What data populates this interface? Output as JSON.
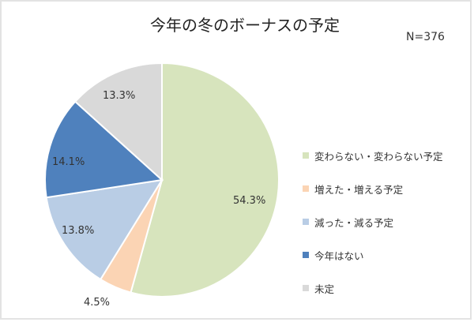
{
  "chart_data": {
    "type": "pie",
    "title": "今年の冬のボーナスの予定",
    "annotation": "N=376",
    "categories": [
      "変わらない・変わらない予定",
      "増えた・増える予定",
      "減った・減る予定",
      "今年はない",
      "未定"
    ],
    "values": [
      54.3,
      4.5,
      13.8,
      14.1,
      13.3
    ],
    "labels": [
      "54.3%",
      "4.5%",
      "13.8%",
      "14.1%",
      "13.3%"
    ],
    "colors": [
      "#d7e4bd",
      "#fbd4b4",
      "#b9cde5",
      "#4f81bd",
      "#d9d9d9"
    ],
    "legend_position": "right",
    "start_angle": "12 o'clock, clockwise"
  },
  "title": "今年の冬のボーナスの予定",
  "n_label": "N=376",
  "legend": [
    {
      "label": "変わらない・変わらない予定",
      "color": "#d7e4bd"
    },
    {
      "label": "増えた・増える予定",
      "color": "#fbd4b4"
    },
    {
      "label": "減った・減る予定",
      "color": "#b9cde5"
    },
    {
      "label": "今年はない",
      "color": "#4f81bd"
    },
    {
      "label": "未定",
      "color": "#d9d9d9"
    }
  ],
  "slice_labels": [
    "54.3%",
    "4.5%",
    "13.8%",
    "14.1%",
    "13.3%"
  ]
}
